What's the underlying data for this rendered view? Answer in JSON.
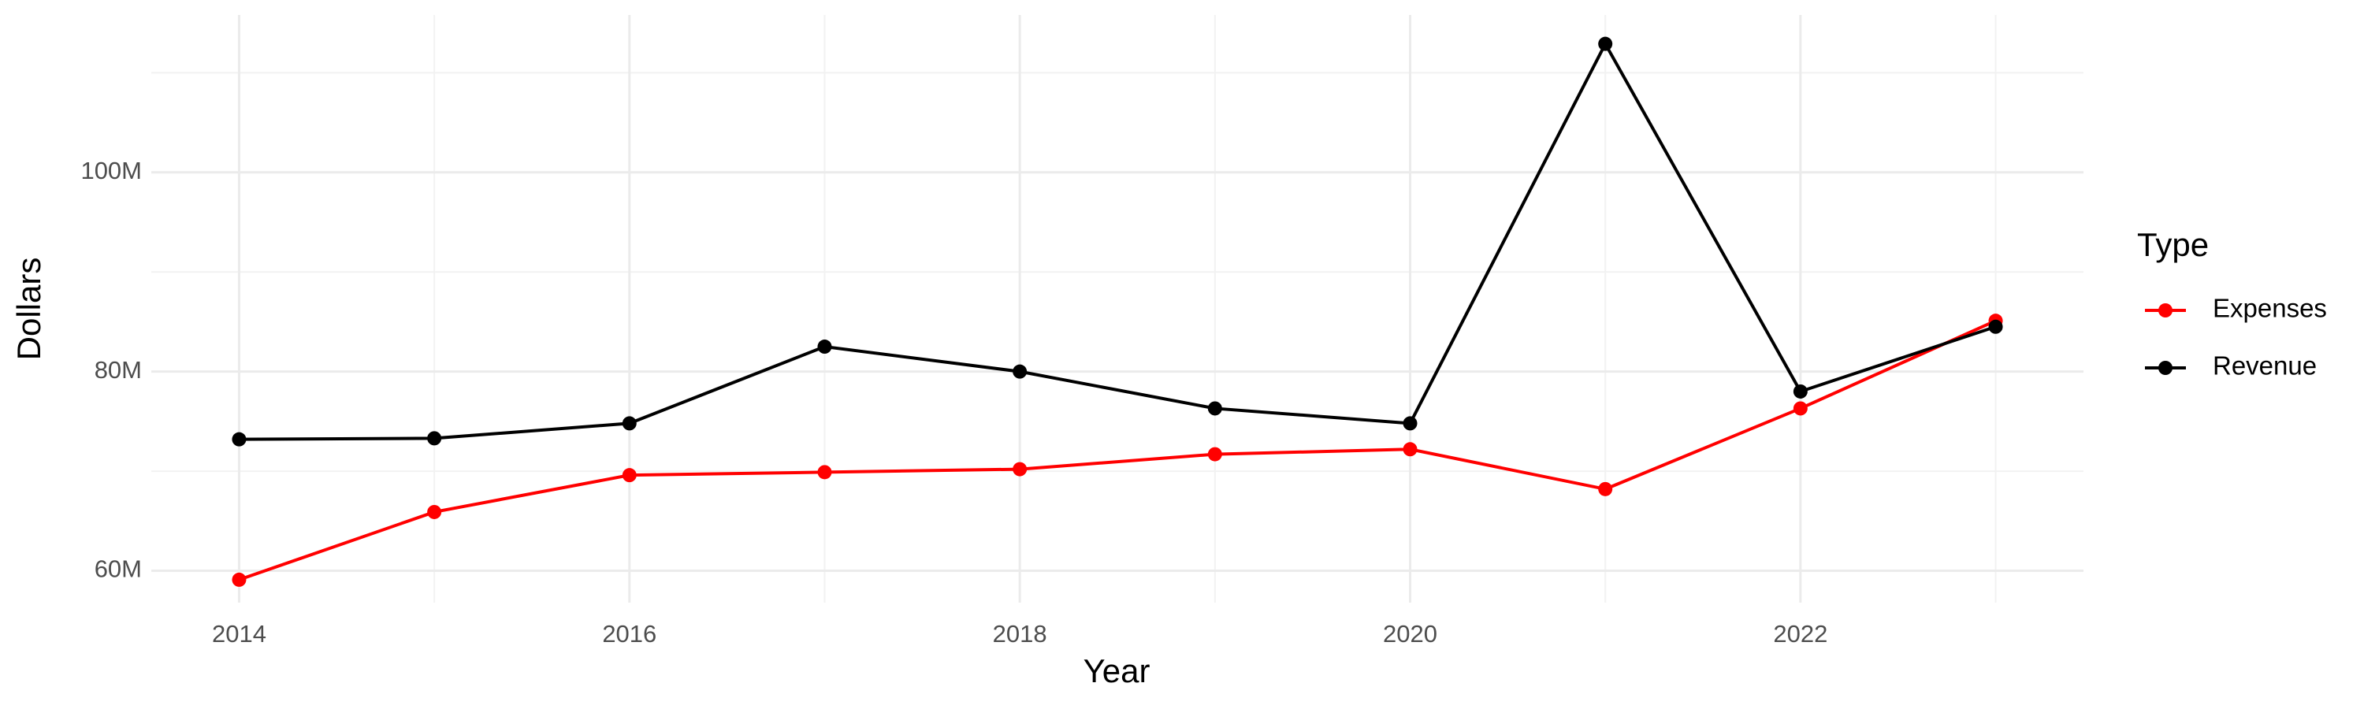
{
  "chart_data": {
    "type": "line",
    "x_label": "Year",
    "y_label": "Dollars",
    "x": [
      2014,
      2015,
      2016,
      2017,
      2018,
      2019,
      2020,
      2021,
      2022,
      2023
    ],
    "series": [
      {
        "name": "Expenses",
        "color": "#ff0000",
        "values": [
          59100000,
          65900000,
          69600000,
          69900000,
          70200000,
          71700000,
          72200000,
          68200000,
          76300000,
          85100000
        ]
      },
      {
        "name": "Revenue",
        "color": "#000000",
        "values": [
          73200000,
          73300000,
          74800000,
          82500000,
          80000000,
          76300000,
          74800000,
          112900000,
          78000000,
          84500000
        ]
      }
    ],
    "legend_title": "Type",
    "legend_position": "right",
    "xlim": [
      2013.55,
      2023.45
    ],
    "xticks": [
      2014,
      2016,
      2018,
      2020,
      2022
    ],
    "x_minor_ticks": [
      2015,
      2017,
      2019,
      2021,
      2023
    ],
    "ylim": [
      56800000,
      115800000
    ],
    "yticks": [
      {
        "value": 60000000,
        "label": "60M"
      },
      {
        "value": 80000000,
        "label": "80M"
      },
      {
        "value": 100000000,
        "label": "100M"
      }
    ],
    "y_minor_ticks": [
      70000000,
      90000000,
      110000000
    ],
    "grid": true
  }
}
